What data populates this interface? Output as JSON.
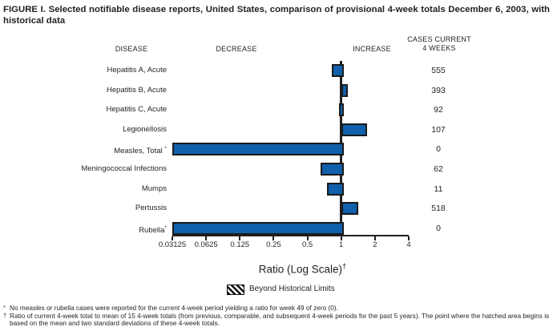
{
  "title": "FIGURE I. Selected notifiable disease reports, United States, comparison of provisional 4-week totals December 6, 2003, with historical data",
  "columns": {
    "disease": "DISEASE",
    "decrease": "DECREASE",
    "increase": "INCREASE",
    "cases_line1": "CASES CURRENT",
    "cases_line2": "4 WEEKS"
  },
  "rows": [
    {
      "label": "Hepatitis A, Acute",
      "sup": "",
      "ratio": 0.83,
      "cases": "555"
    },
    {
      "label": "Hepatitis B, Acute",
      "sup": "",
      "ratio": 1.1,
      "cases": "393"
    },
    {
      "label": "Hepatitis C, Acute",
      "sup": "",
      "ratio": 0.96,
      "cases": "92"
    },
    {
      "label": "Legionellosis",
      "sup": "",
      "ratio": 1.61,
      "cases": "107"
    },
    {
      "label": "Measles, Total ",
      "sup": "*",
      "ratio": 0,
      "cases": "0"
    },
    {
      "label": "Meningococcal Infections",
      "sup": "",
      "ratio": 0.65,
      "cases": "62"
    },
    {
      "label": "Mumps",
      "sup": "",
      "ratio": 0.75,
      "cases": "11"
    },
    {
      "label": "Pertussis",
      "sup": "",
      "ratio": 1.35,
      "cases": "518"
    },
    {
      "label": "Rubella",
      "sup": "*",
      "ratio": 0,
      "cases": "0"
    }
  ],
  "axis": {
    "caption": "Ratio (Log Scale)",
    "caption_sup": "†",
    "ticks": [
      "0.03125",
      "0.0625",
      "0.125",
      "0.25",
      "0.5",
      "1",
      "2",
      "4"
    ]
  },
  "legend": {
    "label": "Beyond Historical Limits"
  },
  "footnotes": [
    {
      "marker": "*",
      "text": "No measles or rubella cases were reported for the current 4-week period yielding a ratio for week 49 of zero (0)."
    },
    {
      "marker": "†",
      "text": "Ratio of current 4-week total to mean of 15 4-week totals (from previous, comparable, and subsequent 4-week periods for the past 5 years). The point where the hatched area begins is based on the mean and two standard deviations of these 4-week totals."
    }
  ],
  "colors": {
    "bar_fill": "#1060ac",
    "bar_border": "#1a1a1a",
    "axis": "#231f20"
  },
  "chart_data": {
    "type": "bar",
    "orientation": "horizontal",
    "scale": "log2",
    "title": "FIGURE I. Selected notifiable disease reports, United States, comparison of provisional 4-week totals December 6, 2003, with historical data",
    "xlabel": "Ratio (Log Scale)†",
    "xlim": [
      0.03125,
      4
    ],
    "xticks": [
      0.03125,
      0.0625,
      0.125,
      0.25,
      0.5,
      1,
      2,
      4
    ],
    "baseline": 1,
    "grid": false,
    "legend_entries": [
      "Beyond Historical Limits"
    ],
    "categories": [
      "Hepatitis A, Acute",
      "Hepatitis B, Acute",
      "Hepatitis C, Acute",
      "Legionellosis",
      "Measles, Total *",
      "Meningococcal Infections",
      "Mumps",
      "Pertussis",
      "Rubella*"
    ],
    "series": [
      {
        "name": "Ratio of current 4-week total to historical mean",
        "values": [
          0.83,
          1.1,
          0.96,
          1.61,
          0,
          0.65,
          0.75,
          1.35,
          0
        ]
      },
      {
        "name": "Cases current 4 weeks",
        "values": [
          555,
          393,
          92,
          107,
          0,
          62,
          11,
          518,
          0
        ]
      }
    ],
    "note": "Bars for Measles and Rubella (ratio 0) are drawn to the axis minimum 0.03125"
  }
}
